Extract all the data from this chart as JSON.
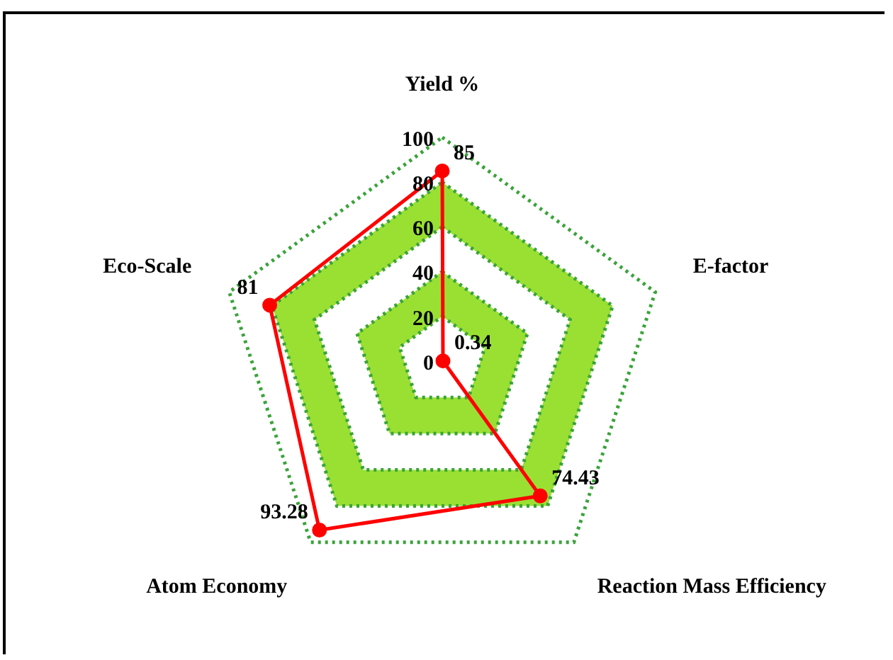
{
  "chart_data": {
    "type": "radar",
    "categories": [
      "Yield %",
      "E-factor",
      "Reaction Mass Efficiency",
      "Atom Economy",
      "Eco-Scale"
    ],
    "series": [
      {
        "color": "#ff0000",
        "values": [
          85,
          0.34,
          74.43,
          93.28,
          81
        ]
      }
    ],
    "ylim": [
      0,
      100
    ],
    "yticks": [
      0,
      20,
      40,
      60,
      80,
      100
    ],
    "grid": true,
    "marker": "circle",
    "line_style": "solid",
    "data_labels": true
  }
}
